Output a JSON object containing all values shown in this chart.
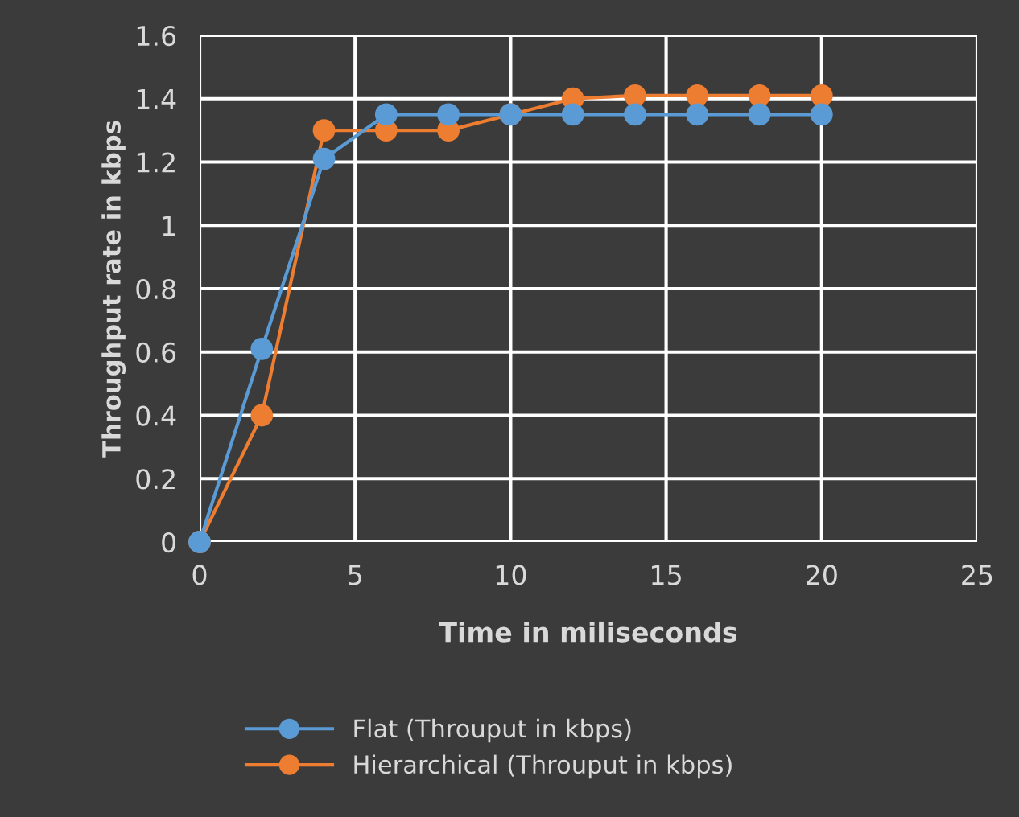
{
  "chart_data": {
    "type": "line",
    "xlabel": "Time in miliseconds",
    "ylabel": "Throughput rate in kbps",
    "x": [
      0,
      2,
      4,
      6,
      8,
      10,
      12,
      14,
      16,
      18,
      20
    ],
    "series": [
      {
        "name": "Flat (Throuput in kbps)",
        "color": "#5b9bd5",
        "values": [
          0,
          0.61,
          1.21,
          1.35,
          1.35,
          1.35,
          1.35,
          1.35,
          1.35,
          1.35,
          1.35
        ]
      },
      {
        "name": "Hierarchical (Throuput in kbps)",
        "color": "#ed7d31",
        "values": [
          0,
          0.4,
          1.3,
          1.3,
          1.3,
          1.35,
          1.4,
          1.41,
          1.41,
          1.41,
          1.41
        ]
      }
    ],
    "xlim": [
      0,
      25
    ],
    "xticks": [
      0,
      5,
      10,
      15,
      20,
      25
    ],
    "ylim": [
      0,
      1.6
    ],
    "yticks": [
      0,
      0.2,
      0.4,
      0.6,
      0.8,
      1,
      1.2,
      1.4,
      1.6
    ],
    "grid": true,
    "legend": "bottom",
    "marker": "circle",
    "line_style": "solid"
  }
}
